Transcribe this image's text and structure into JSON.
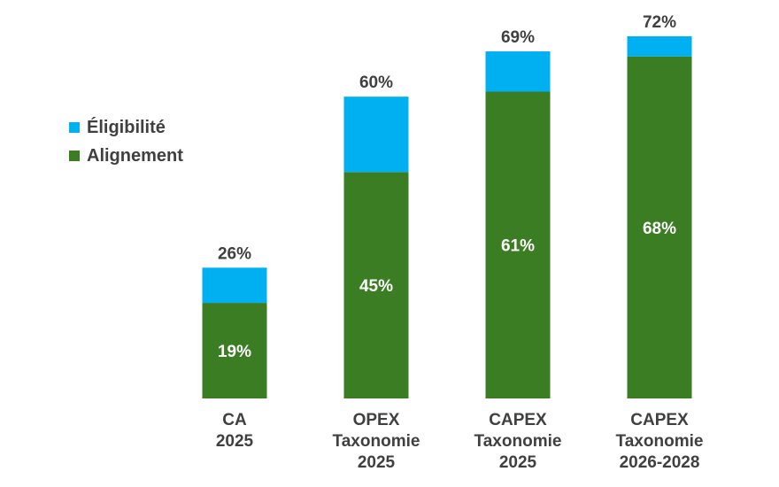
{
  "chart_data": {
    "type": "bar",
    "stacked": true,
    "categories": [
      [
        "CA",
        "2025"
      ],
      [
        "OPEX",
        "Taxonomie",
        "2025"
      ],
      [
        "CAPEX",
        "Taxonomie",
        "2025"
      ],
      [
        "CAPEX",
        "Taxonomie",
        "2026-2028"
      ]
    ],
    "series": [
      {
        "name": "Alignement",
        "color": "#3a7d23",
        "values": [
          19,
          45,
          61,
          68
        ],
        "labels": [
          "19%",
          "45%",
          "61%",
          "68%"
        ]
      },
      {
        "name": "Éligibilité",
        "color": "#00b0f0",
        "values": [
          7,
          15,
          8,
          4
        ]
      }
    ],
    "totals": [
      26,
      60,
      69,
      72
    ],
    "total_labels": [
      "26%",
      "60%",
      "69%",
      "72%"
    ],
    "ylim": [
      0,
      72
    ],
    "legend_position": "top-left",
    "grid": false
  },
  "legend": [
    {
      "label": "Éligibilité",
      "color": "#00b0f0"
    },
    {
      "label": "Alignement",
      "color": "#3a7d23"
    }
  ]
}
